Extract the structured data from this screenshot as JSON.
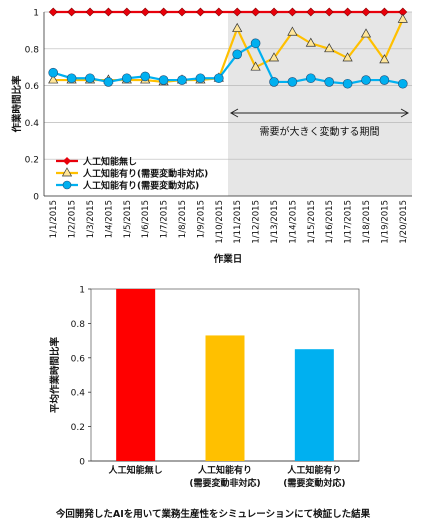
{
  "caption": "今回開発したAIを用いて業務生産性をシミュレーションにて検証した結果",
  "chart_data": [
    {
      "type": "line",
      "xlabel": "作業日",
      "ylabel": "作業時間比率",
      "ylim": [
        0,
        1
      ],
      "yticks": [
        "0",
        "0.2",
        "0.4",
        "0.6",
        "0.8",
        "1"
      ],
      "categories": [
        "1/1/2015",
        "1/2/2015",
        "1/3/2015",
        "1/4/2015",
        "1/5/2015",
        "1/6/2015",
        "1/7/2015",
        "1/8/2015",
        "1/9/2015",
        "1/10/2015",
        "1/11/2015",
        "1/12/2015",
        "1/13/2015",
        "1/14/2015",
        "1/15/2015",
        "1/16/2015",
        "1/17/2015",
        "1/18/2015",
        "1/19/2015",
        "1/20/2015"
      ],
      "annotation": "需要が大きく変動する期間",
      "shaded_from": "1/11/2015",
      "grid": true,
      "legend_position": "bottom-left",
      "series": [
        {
          "name": "人工知能無し",
          "color": "#e8000b",
          "marker": "diamond",
          "values": [
            1,
            1,
            1,
            1,
            1,
            1,
            1,
            1,
            1,
            1,
            1,
            1,
            1,
            1,
            1,
            1,
            1,
            1,
            1,
            1
          ]
        },
        {
          "name": "人工知能有り(需要変動非対応)",
          "color": "#ffc000",
          "marker": "triangle",
          "values": [
            0.63,
            0.63,
            0.63,
            0.63,
            0.63,
            0.63,
            0.62,
            0.63,
            0.63,
            0.64,
            0.91,
            0.7,
            0.75,
            0.89,
            0.83,
            0.8,
            0.75,
            0.88,
            0.74,
            0.96
          ]
        },
        {
          "name": "人工知能有り(需要変動対応)",
          "color": "#00b0f0",
          "marker": "circle",
          "values": [
            0.67,
            0.64,
            0.64,
            0.62,
            0.64,
            0.65,
            0.63,
            0.63,
            0.64,
            0.64,
            0.77,
            0.83,
            0.62,
            0.62,
            0.64,
            0.62,
            0.61,
            0.63,
            0.63,
            0.61
          ]
        }
      ]
    },
    {
      "type": "bar",
      "ylabel": "平均作業時間比率",
      "ylim": [
        0,
        1
      ],
      "yticks": [
        "0",
        "0.2",
        "0.4",
        "0.6",
        "0.8",
        "1"
      ],
      "grid": false,
      "categories": [
        {
          "line1": "人工知能無し",
          "line2": ""
        },
        {
          "line1": "人工知能有り",
          "line2": "(需要変動非対応)"
        },
        {
          "line1": "人工知能有り",
          "line2": "(需要変動対応)"
        }
      ],
      "values": [
        1.0,
        0.73,
        0.65
      ],
      "colors": [
        "#ff0000",
        "#ffc000",
        "#00b0f0"
      ]
    }
  ]
}
